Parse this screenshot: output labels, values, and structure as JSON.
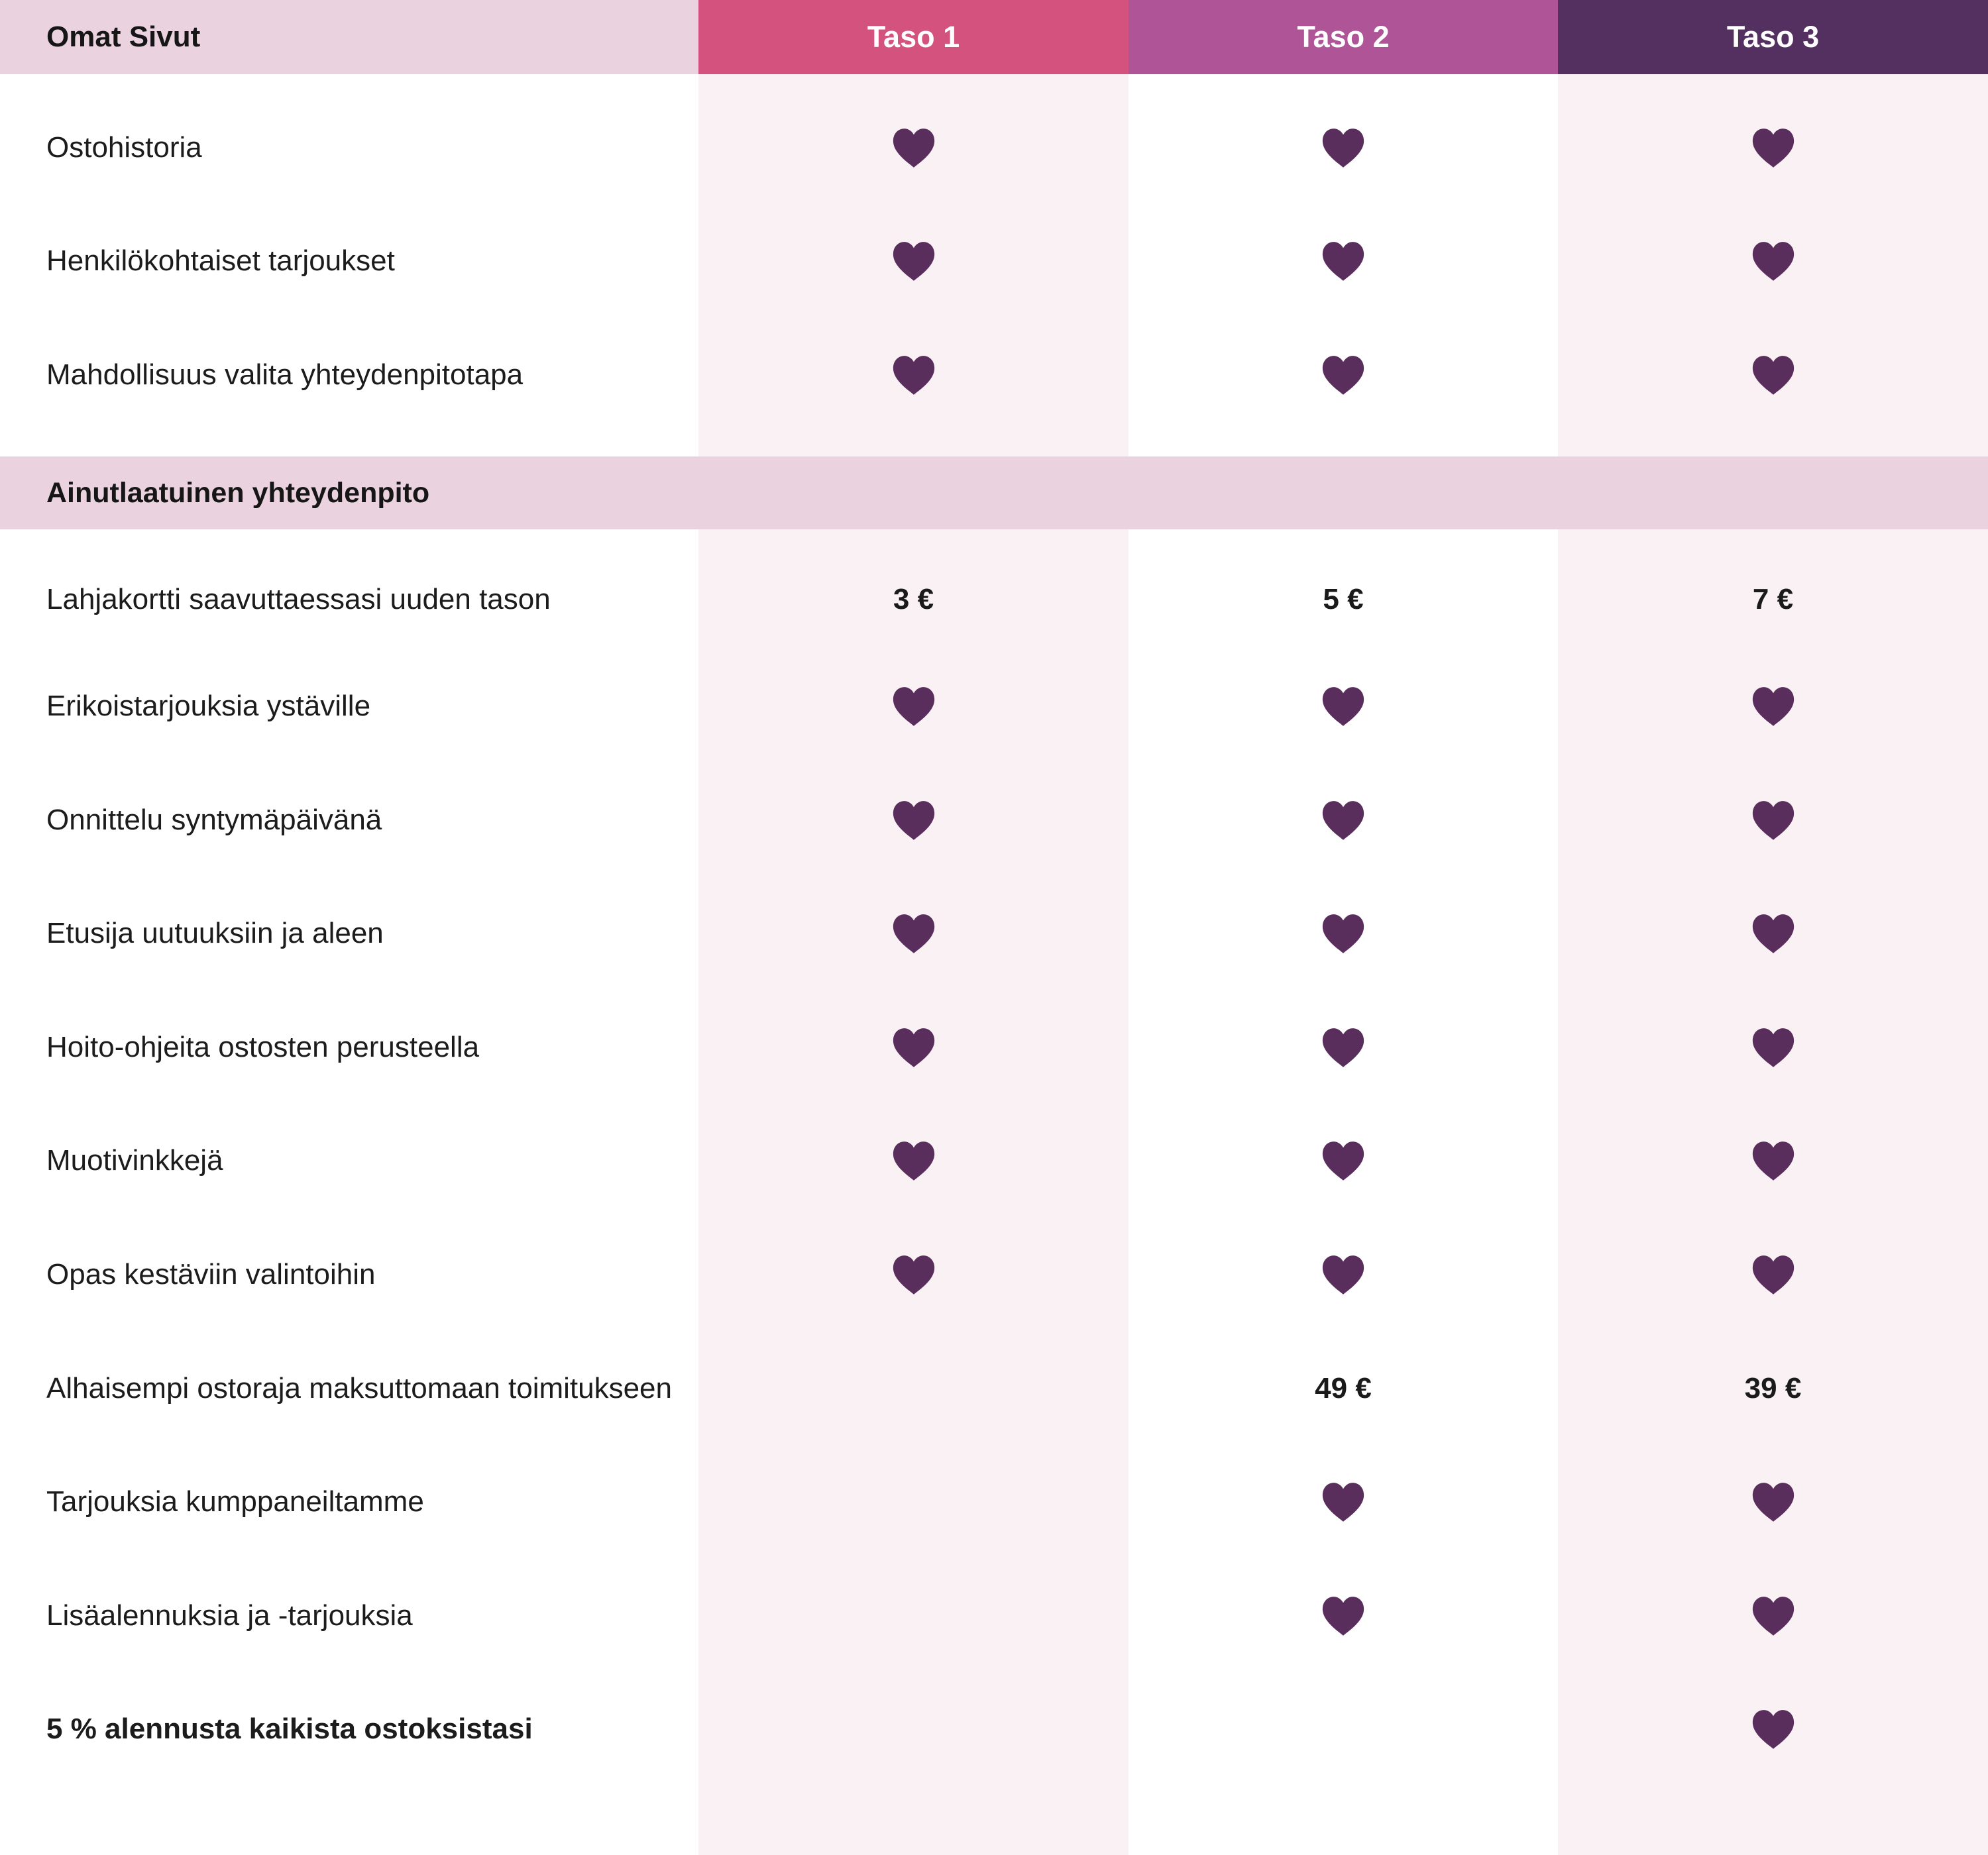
{
  "header": {
    "title": "Omat Sivut",
    "tiers": [
      "Taso 1",
      "Taso 2",
      "Taso 3"
    ]
  },
  "colors": {
    "tier1": "#d4527e",
    "tier2": "#ae5497",
    "tier3": "#543060",
    "heart": "#5a2e5c",
    "section_bg": "#ead2df"
  },
  "icons": {
    "included": "heart-icon"
  },
  "rows_top": [
    {
      "label": "Ostohistoria",
      "t1": "heart",
      "t2": "heart",
      "t3": "heart"
    },
    {
      "label": "Henkilökohtaiset tarjoukset",
      "t1": "heart",
      "t2": "heart",
      "t3": "heart"
    },
    {
      "label": "Mahdollisuus valita yhteydenpitotapa",
      "t1": "heart",
      "t2": "heart",
      "t3": "heart"
    }
  ],
  "section": {
    "title": "Ainutlaatuinen yhteydenpito"
  },
  "rows": [
    {
      "label": "Lahjakortti saavuttaessasi uuden tason",
      "t1": "3 €",
      "t2": "5 €",
      "t3": "7 €"
    },
    {
      "label": "Erikoistarjouksia ystäville",
      "t1": "heart",
      "t2": "heart",
      "t3": "heart"
    },
    {
      "label": "Onnittelu syntymäpäivänä",
      "t1": "heart",
      "t2": "heart",
      "t3": "heart"
    },
    {
      "label": "Etusija uutuuksiin ja aleen",
      "t1": "heart",
      "t2": "heart",
      "t3": "heart"
    },
    {
      "label": "Hoito-ohjeita ostosten perusteella",
      "t1": "heart",
      "t2": "heart",
      "t3": "heart"
    },
    {
      "label": "Muotivinkkejä",
      "t1": "heart",
      "t2": "heart",
      "t3": "heart"
    },
    {
      "label": "Opas kestäviin valintoihin",
      "t1": "heart",
      "t2": "heart",
      "t3": "heart"
    },
    {
      "label": "Alhaisempi ostoraja maksuttomaan toimitukseen",
      "t1": "",
      "t2": "49 €",
      "t3": "39 €"
    },
    {
      "label": "Tarjouksia kumppaneiltamme",
      "t1": "",
      "t2": "heart",
      "t3": "heart"
    },
    {
      "label": "Lisäalennuksia ja -tarjouksia",
      "t1": "",
      "t2": "heart",
      "t3": "heart"
    },
    {
      "label": "5 % alennusta kaikista ostoksistasi",
      "t1": "",
      "t2": "",
      "t3": "heart",
      "bold": true
    }
  ]
}
